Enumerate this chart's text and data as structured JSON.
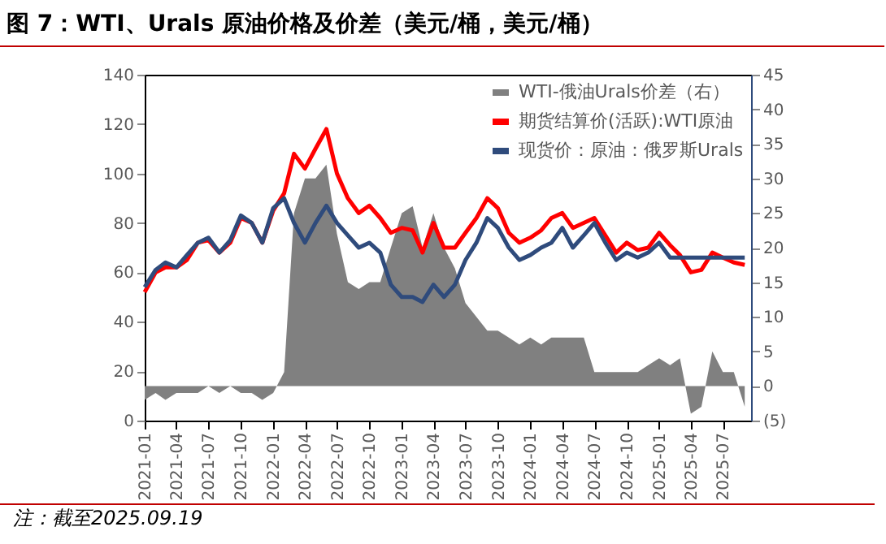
{
  "chart_data": {
    "type": "line",
    "title": "图 7：WTI、Urals 原油价格及价差（美元/桶，美元/桶）",
    "annotations": [
      "注：截至2025.09.19"
    ],
    "x": [
      "2021-01",
      "2021-02",
      "2021-03",
      "2021-04",
      "2021-05",
      "2021-06",
      "2021-07",
      "2021-08",
      "2021-09",
      "2021-10",
      "2021-11",
      "2021-12",
      "2022-01",
      "2022-02",
      "2022-03",
      "2022-04",
      "2022-05",
      "2022-06",
      "2022-07",
      "2022-08",
      "2022-09",
      "2022-10",
      "2022-11",
      "2022-12",
      "2023-01",
      "2023-02",
      "2023-03",
      "2023-04",
      "2023-05",
      "2023-06",
      "2023-07",
      "2023-08",
      "2023-09",
      "2023-10",
      "2023-11",
      "2023-12",
      "2024-01",
      "2024-02",
      "2024-03",
      "2024-04",
      "2024-05",
      "2024-06",
      "2024-07",
      "2024-08",
      "2024-09",
      "2024-10",
      "2024-11",
      "2024-12",
      "2025-01",
      "2025-02",
      "2025-03",
      "2025-04",
      "2025-05",
      "2025-06",
      "2025-07",
      "2025-08",
      "2025-09"
    ],
    "series": [
      {
        "name": "WTI-俄油Urals价差（右）",
        "type": "area",
        "axis": "y2",
        "color": "#808080",
        "values": [
          -2,
          -1,
          -2,
          -1,
          -1,
          -1,
          0,
          -1,
          0,
          -1,
          -1,
          -2,
          -1,
          2,
          25,
          30,
          30,
          32,
          22,
          15,
          14,
          15,
          15,
          20,
          25,
          26,
          20,
          25,
          20,
          17,
          12,
          10,
          8,
          8,
          7,
          6,
          7,
          6,
          7,
          7,
          7,
          7,
          2,
          2,
          2,
          2,
          2,
          3,
          4,
          3,
          4,
          -4,
          -3,
          5,
          2,
          2,
          -3
        ]
      },
      {
        "name": "期货结算价(活跃):WTI原油",
        "color": "#ff0000",
        "values": [
          52,
          60,
          62,
          62,
          65,
          72,
          73,
          68,
          72,
          82,
          80,
          72,
          85,
          92,
          108,
          102,
          110,
          118,
          100,
          90,
          84,
          87,
          82,
          76,
          78,
          77,
          68,
          80,
          70,
          70,
          76,
          82,
          90,
          86,
          76,
          72,
          74,
          77,
          82,
          84,
          78,
          80,
          82,
          75,
          68,
          72,
          69,
          70,
          76,
          71,
          67,
          60,
          61,
          68,
          66,
          64,
          63
        ]
      },
      {
        "name": "现货价：原油：俄罗斯Urals",
        "color": "#2f4b7c",
        "values": [
          54,
          61,
          64,
          62,
          67,
          72,
          74,
          68,
          73,
          83,
          80,
          72,
          86,
          90,
          80,
          72,
          80,
          87,
          80,
          75,
          70,
          72,
          68,
          55,
          50,
          50,
          48,
          55,
          50,
          55,
          65,
          72,
          82,
          78,
          70,
          65,
          67,
          70,
          72,
          78,
          70,
          75,
          80,
          72,
          65,
          68,
          66,
          68,
          72,
          66,
          66,
          66,
          66,
          66,
          66,
          66,
          66
        ]
      }
    ],
    "xlim": [
      "2021-01",
      "2025-09-19"
    ],
    "xticks": [
      "2021-01",
      "2021-04",
      "2021-07",
      "2021-10",
      "2022-01",
      "2022-04",
      "2022-07",
      "2022-10",
      "2023-01",
      "2023-04",
      "2023-07",
      "2023-10",
      "2024-01",
      "2024-04",
      "2024-07",
      "2024-10",
      "2025-01",
      "2025-04",
      "2025-07"
    ],
    "ylim": [
      0,
      140
    ],
    "yticks": [
      0,
      20,
      40,
      60,
      80,
      100,
      120,
      140
    ],
    "y2lim": [
      -5,
      45
    ],
    "y2ticks": [
      {
        "value": -5,
        "label": "(5)"
      },
      0,
      5,
      10,
      15,
      20,
      25,
      30,
      35,
      40,
      45
    ],
    "legend": "top right",
    "grid": false
  }
}
